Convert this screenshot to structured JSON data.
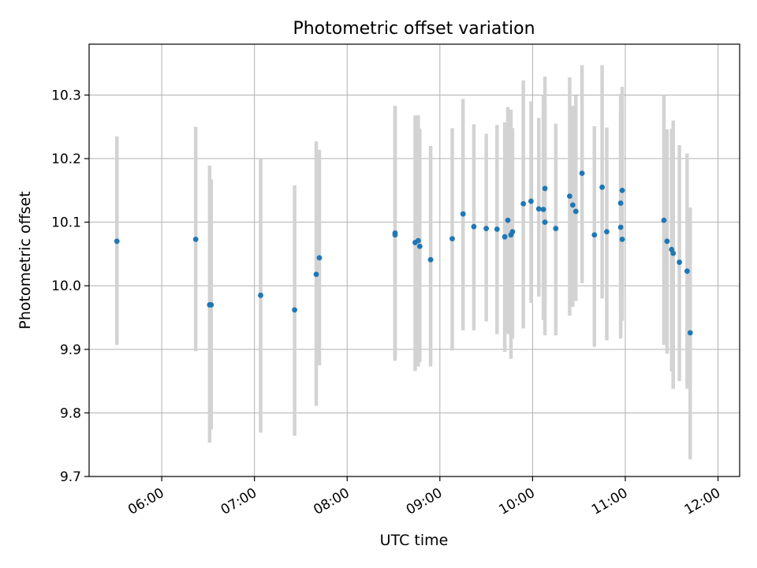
{
  "chart_data": {
    "type": "scatter",
    "title": "Photometric offset variation",
    "xlabel": "UTC time",
    "ylabel": "Photometric offset",
    "xlim": [
      "05:13",
      "12:14"
    ],
    "ylim": [
      9.7,
      10.38
    ],
    "x_ticks": [
      "06:00",
      "07:00",
      "08:00",
      "09:00",
      "10:00",
      "11:00",
      "12:00"
    ],
    "y_ticks": [
      "9.7",
      "9.8",
      "9.9",
      "10.0",
      "10.1",
      "10.2",
      "10.3"
    ],
    "grid": true,
    "colors": {
      "point": "#1f77b4",
      "error_bar": "#d3d3d3",
      "grid": "#b0b0b0"
    },
    "series": [
      {
        "x": [
          "05:31",
          "06:22",
          "06:31",
          "06:32",
          "07:04",
          "07:26",
          "07:40",
          "07:42",
          "08:31",
          "08:31",
          "08:44",
          "08:46",
          "08:47",
          "08:54",
          "09:08",
          "09:15",
          "09:22",
          "09:30",
          "09:37",
          "09:42",
          "09:44",
          "09:46",
          "09:47",
          "09:54",
          "09:59",
          "10:04",
          "10:07",
          "10:08",
          "10:08",
          "10:15",
          "10:24",
          "10:26",
          "10:28",
          "10:32",
          "10:40",
          "10:45",
          "10:48",
          "10:57",
          "10:57",
          "10:58",
          "10:58",
          "11:25",
          "11:27",
          "11:30",
          "11:31",
          "11:35",
          "11:40",
          "11:42"
        ],
        "y": [
          10.07,
          10.073,
          9.97,
          9.97,
          9.985,
          9.962,
          10.018,
          10.044,
          10.083,
          10.08,
          10.068,
          10.071,
          10.062,
          10.041,
          10.074,
          10.113,
          10.093,
          10.09,
          10.089,
          10.077,
          10.103,
          10.08,
          10.085,
          10.129,
          10.133,
          10.121,
          10.12,
          10.153,
          10.1,
          10.09,
          10.141,
          10.127,
          10.117,
          10.177,
          10.08,
          10.155,
          10.085,
          10.092,
          10.13,
          10.15,
          10.073,
          10.103,
          10.07,
          10.057,
          10.051,
          10.037,
          10.023,
          9.926
        ],
        "error_low": [
          9.907,
          9.897,
          9.753,
          9.774,
          9.769,
          9.764,
          9.811,
          9.875,
          9.882,
          9.887,
          9.866,
          9.873,
          9.88,
          9.873,
          9.898,
          9.93,
          9.93,
          9.944,
          9.924,
          9.896,
          9.924,
          9.885,
          9.917,
          9.933,
          9.973,
          9.983,
          9.946,
          9.975,
          9.922,
          9.922,
          9.953,
          9.967,
          9.976,
          10.004,
          9.904,
          9.98,
          9.914,
          9.917,
          9.953,
          9.985,
          9.945,
          9.907,
          9.893,
          9.865,
          9.838,
          9.85,
          9.838,
          9.727
        ],
        "error_high": [
          10.235,
          10.25,
          10.189,
          10.167,
          10.2,
          10.158,
          10.227,
          10.214,
          10.282,
          10.283,
          10.268,
          10.268,
          10.247,
          10.22,
          10.248,
          10.294,
          10.254,
          10.239,
          10.253,
          10.257,
          10.281,
          10.277,
          10.248,
          10.323,
          10.29,
          10.264,
          10.3,
          10.329,
          10.277,
          10.255,
          10.328,
          10.283,
          10.299,
          10.347,
          10.251,
          10.347,
          10.249,
          10.27,
          10.302,
          10.313,
          10.291,
          10.3,
          10.246,
          10.247,
          10.26,
          10.221,
          10.208,
          10.123
        ]
      }
    ]
  }
}
